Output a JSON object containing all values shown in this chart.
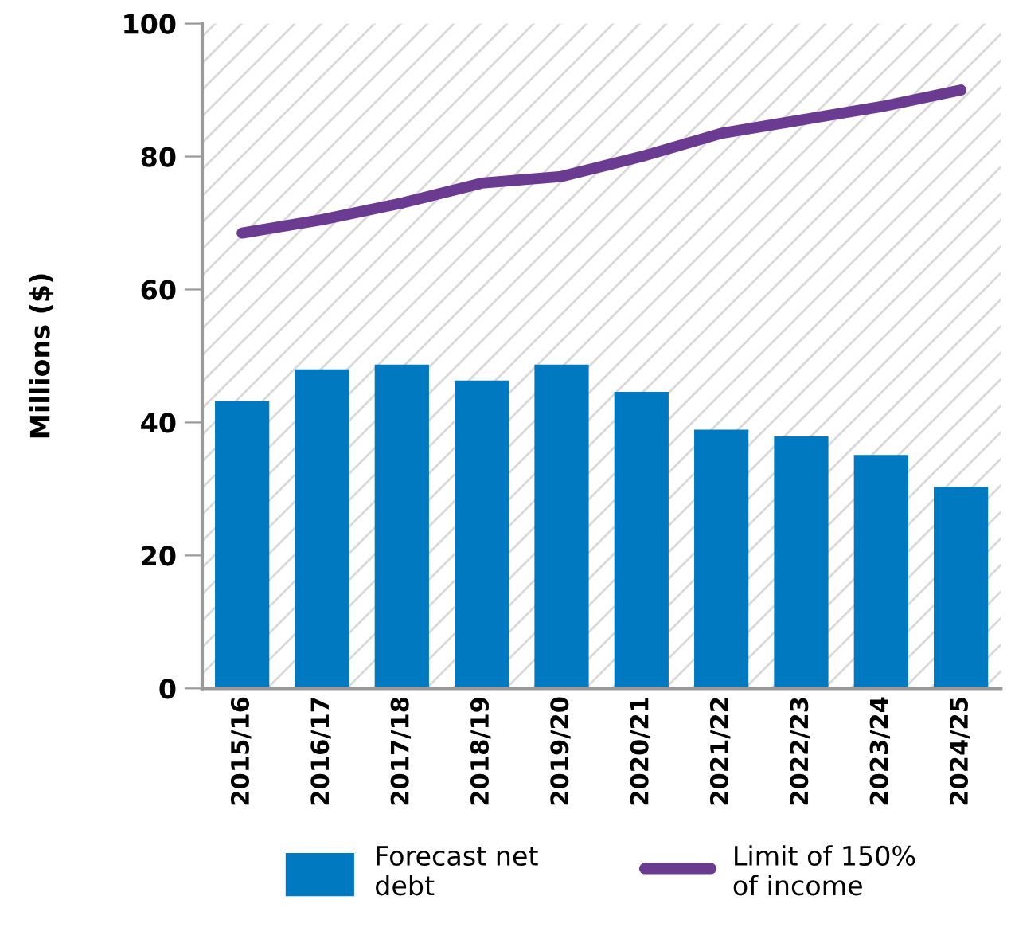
{
  "chart_data": {
    "type": "bar",
    "ylabel": "Millions ($)",
    "categories": [
      "2015/16",
      "2016/17",
      "2017/18",
      "2018/19",
      "2019/20",
      "2020/21",
      "2021/22",
      "2022/23",
      "2023/24",
      "2024/25"
    ],
    "series": [
      {
        "name": "Forecast net debt",
        "color": "#0079c1",
        "values": [
          43.2,
          48,
          48.7,
          46.3,
          48.7,
          44.6,
          38.9,
          37.9,
          35.1,
          30.3
        ]
      },
      {
        "name": "Limit of 150% of income",
        "type": "line",
        "color": "#6b3a91",
        "values": [
          68.5,
          70.5,
          73,
          76,
          77,
          80,
          83.5,
          85.5,
          87.5,
          90
        ]
      }
    ],
    "ylim": [
      0,
      100
    ],
    "yticks": [
      0,
      20,
      40,
      60,
      80,
      100
    ],
    "grid": false,
    "legend": "bottom",
    "marker": "none",
    "line_style": "solid"
  }
}
